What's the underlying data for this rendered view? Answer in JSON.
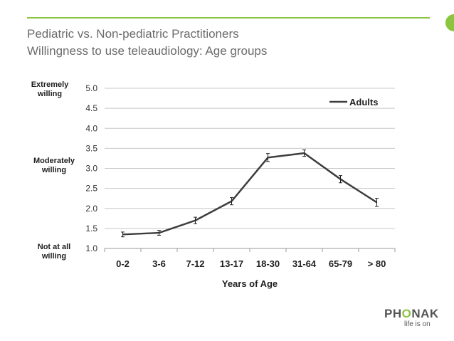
{
  "slide": {
    "title_line1": "Pediatric vs. Non-pediatric Practitioners",
    "title_line2": "Willingness to use teleaudiology: Age groups",
    "accent_color": "#8bc53f"
  },
  "annotations": {
    "top": [
      "Extremely",
      "willing"
    ],
    "middle": [
      "Moderately",
      "willing"
    ],
    "bottom": [
      "Not at all",
      "willing"
    ]
  },
  "logo": {
    "brand_before": "PH",
    "brand_o": "O",
    "brand_after": "NAK",
    "tagline": "life is on"
  },
  "chart_data": {
    "type": "line",
    "title": "",
    "xlabel": "Years of Age",
    "ylabel": "",
    "categories": [
      "0-2",
      "3-6",
      "7-12",
      "13-17",
      "18-30",
      "31-64",
      "65-79",
      "> 80"
    ],
    "ylim": [
      1.0,
      5.0
    ],
    "yticks": [
      "1.0",
      "1.5",
      "2.0",
      "2.5",
      "3.0",
      "3.5",
      "4.0",
      "4.5",
      "5.0"
    ],
    "grid": true,
    "legend_position": "top-right",
    "series": [
      {
        "name": "Adults",
        "color": "#3d3d3d",
        "values": [
          1.35,
          1.39,
          1.7,
          2.18,
          3.27,
          3.38,
          2.73,
          2.15
        ],
        "error": [
          0.06,
          0.06,
          0.08,
          0.09,
          0.1,
          0.08,
          0.09,
          0.1
        ]
      }
    ]
  }
}
